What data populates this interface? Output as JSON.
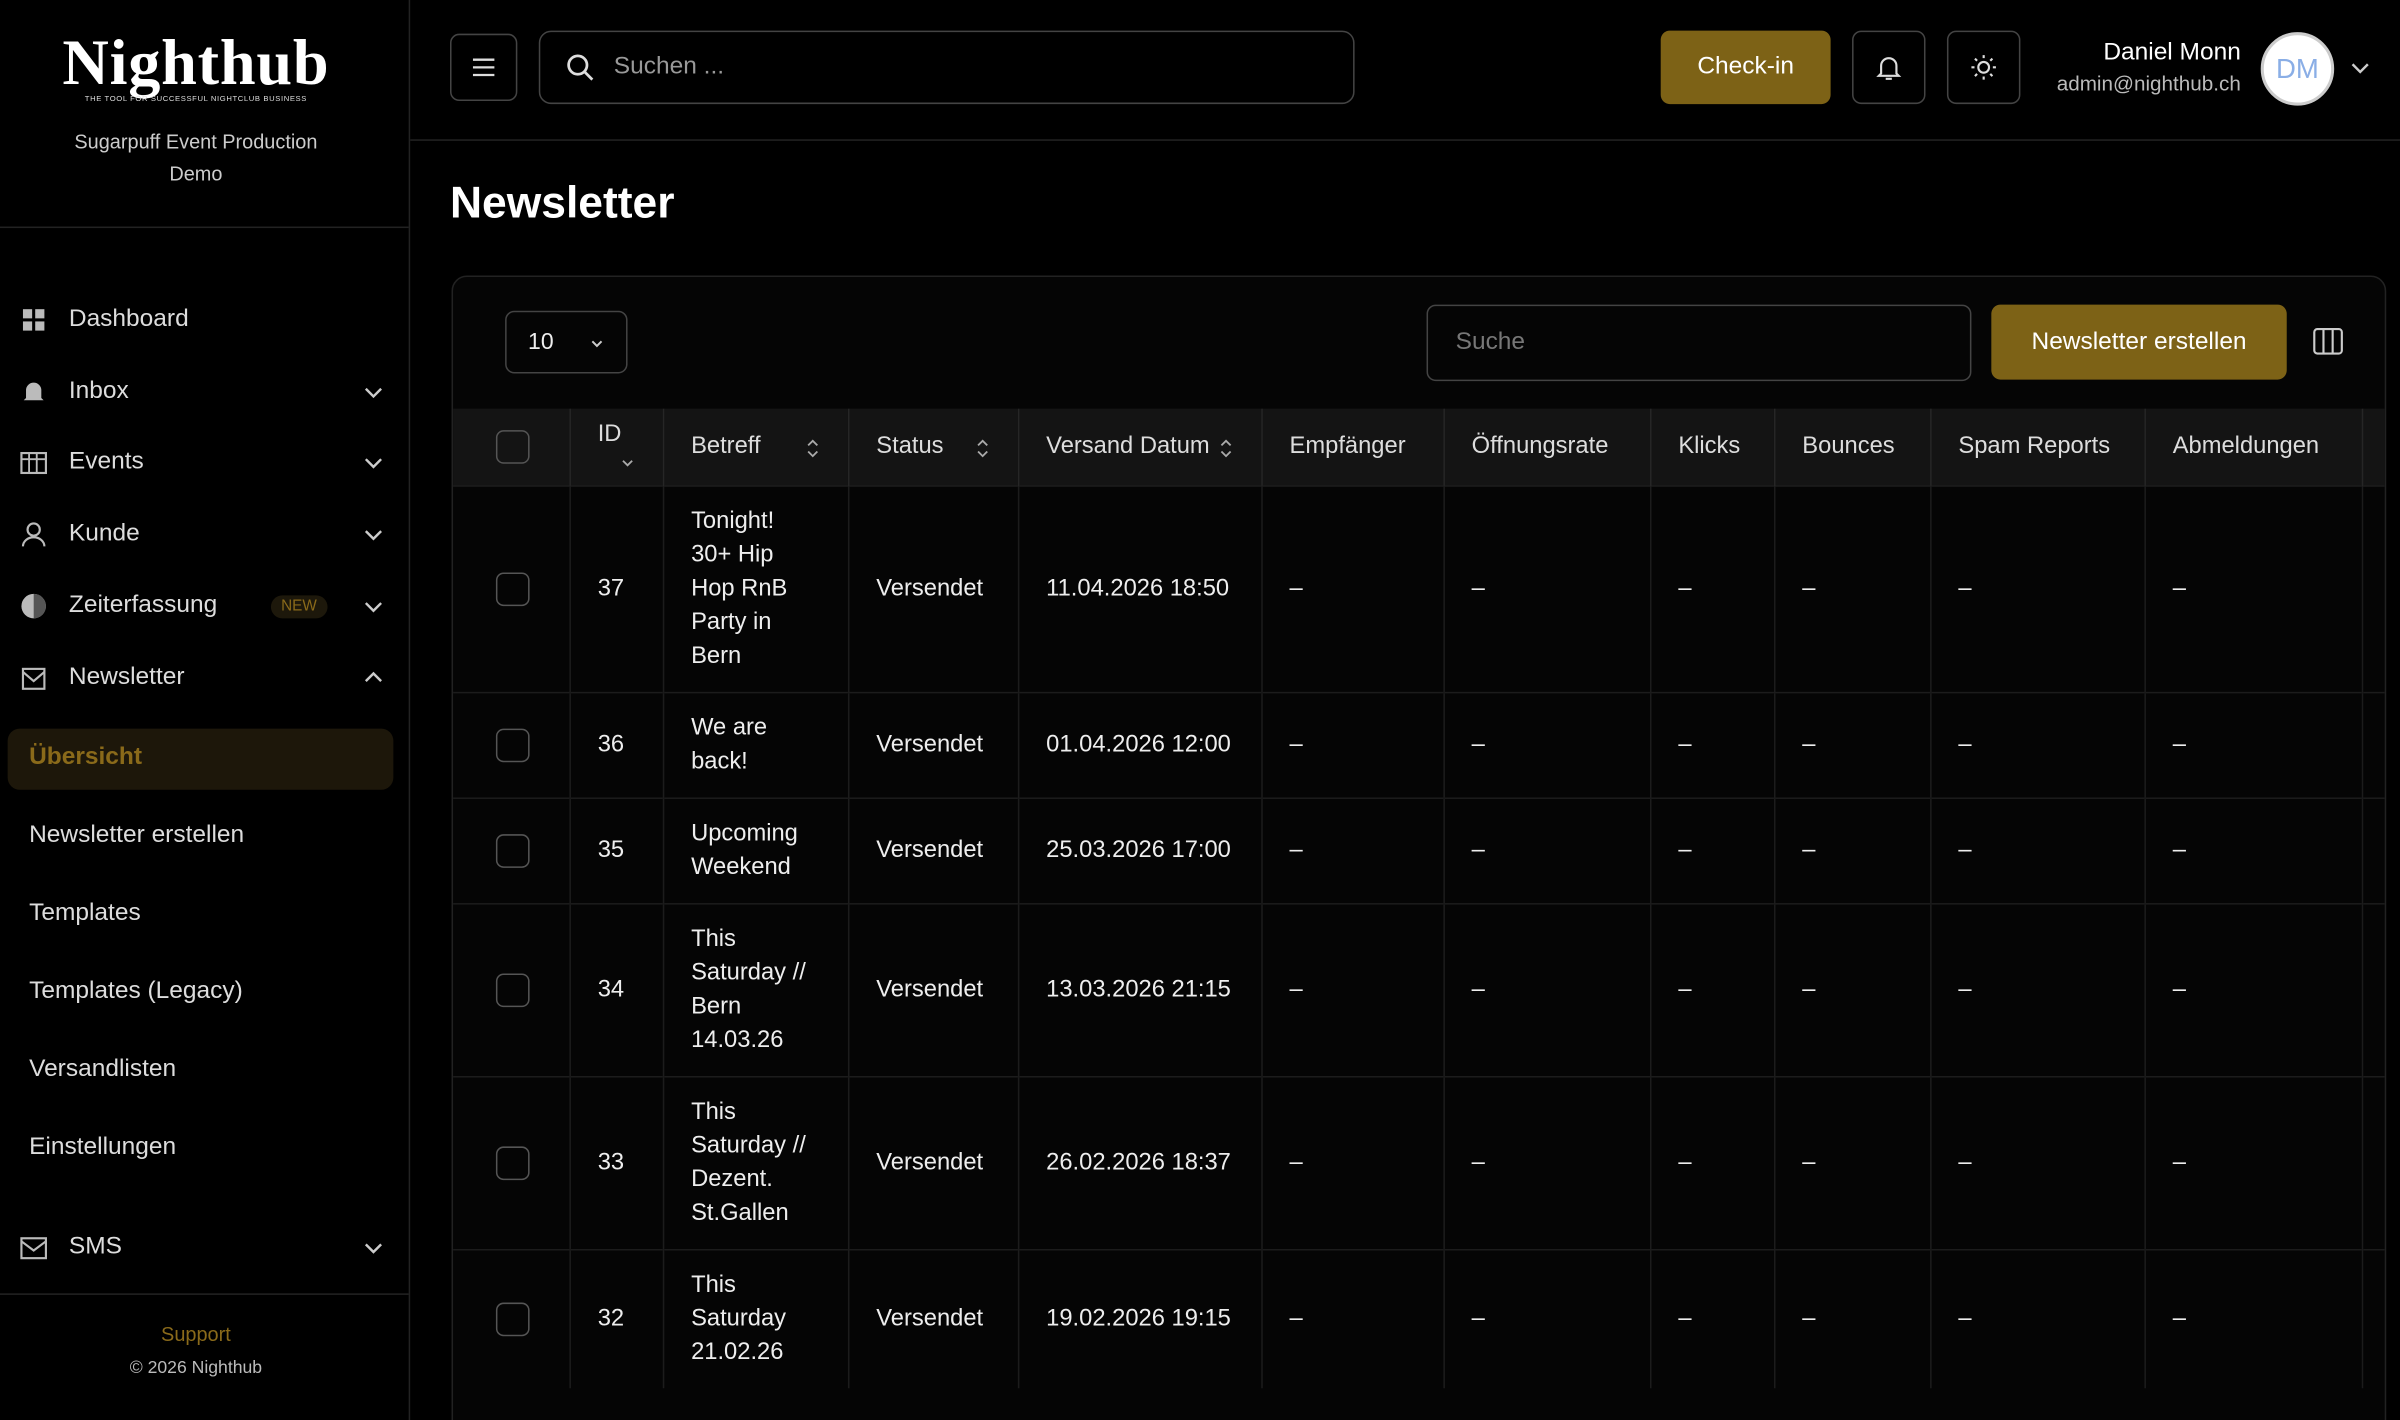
{
  "sidebar": {
    "logo": "Nighthub",
    "tagline": "THE TOOL FOR SUCCESSFUL NIGHTCLUB BUSINESS",
    "org": "Sugarpuff Event Production",
    "org_sub": "Demo",
    "nav": [
      "Dashboard",
      "Inbox",
      "Events",
      "Kunde",
      "Zeiterfassung",
      "Newsletter"
    ],
    "badge": "NEW",
    "submenu": [
      "Übersicht",
      "Newsletter erstellen",
      "Templates",
      "Templates (Legacy)",
      "Versandlisten",
      "Einstellungen"
    ],
    "sms": "SMS",
    "support": "Support",
    "copyright": "© 2026 Nighthub"
  },
  "header": {
    "search_placeholder": "Suchen ...",
    "checkin": "Check-in",
    "user_name": "Daniel Monn",
    "user_email": "admin@nighthub.ch",
    "avatar": "DM"
  },
  "page": {
    "title": "Newsletter",
    "page_size": "10",
    "search_placeholder": "Suche",
    "create_button": "Newsletter erstellen"
  },
  "table": {
    "columns": [
      "ID",
      "Betreff",
      "Status",
      "Versand Datum",
      "Empfänger",
      "Öffnungsrate",
      "Klicks",
      "Bounces",
      "Spam Reports",
      "Abmeldungen"
    ],
    "rows": [
      [
        "37",
        "Tonight! 30+ Hip Hop RnB Party in Bern",
        "Versendet",
        "11.04.2026 18:50",
        "–",
        "–",
        "–",
        "–",
        "–",
        "–"
      ],
      [
        "36",
        "We are back!",
        "Versendet",
        "01.04.2026 12:00",
        "–",
        "–",
        "–",
        "–",
        "–",
        "–"
      ],
      [
        "35",
        "Upcoming Weekend",
        "Versendet",
        "25.03.2026 17:00",
        "–",
        "–",
        "–",
        "–",
        "–",
        "–"
      ],
      [
        "34",
        "This Saturday // Bern 14.03.26",
        "Versendet",
        "13.03.2026 21:15",
        "–",
        "–",
        "–",
        "–",
        "–",
        "–"
      ],
      [
        "33",
        "This Saturday // Dezent. St.Gallen",
        "Versendet",
        "26.02.2026 18:37",
        "–",
        "–",
        "–",
        "–",
        "–",
        "–"
      ],
      [
        "32",
        "This Saturday 21.02.26",
        "Versendet",
        "19.02.2026 19:15",
        "–",
        "–",
        "–",
        "–",
        "–",
        "–"
      ]
    ]
  }
}
